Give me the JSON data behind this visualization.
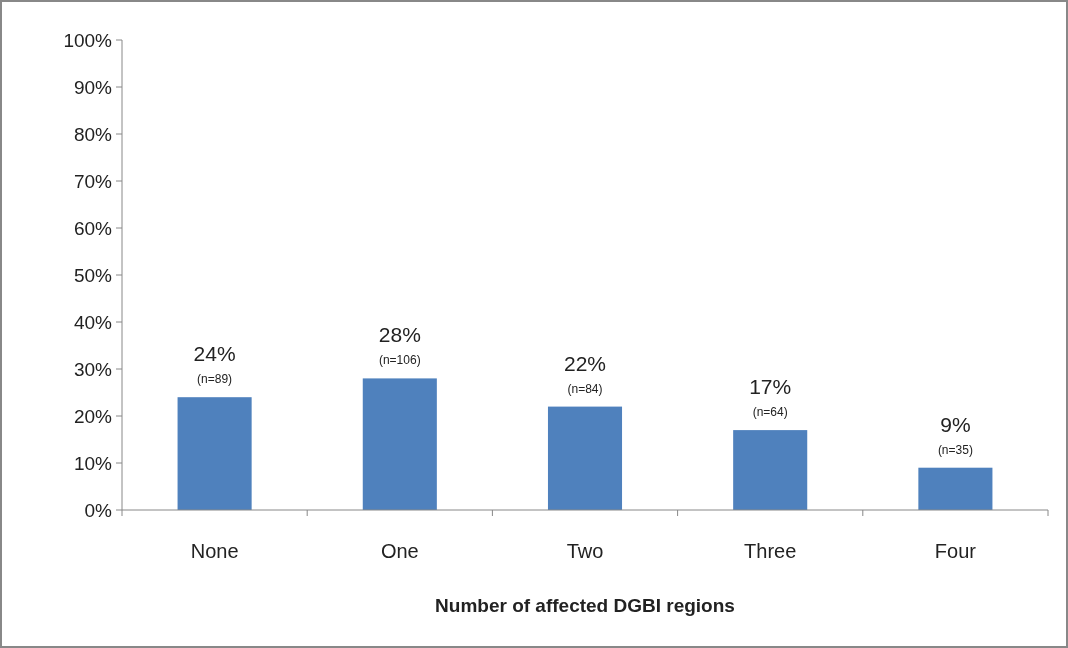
{
  "chart_data": {
    "type": "bar",
    "xlabel": "Number of affected DGBI regions",
    "categories": [
      "None",
      "One",
      "Two",
      "Three",
      "Four"
    ],
    "values": [
      24,
      28,
      22,
      17,
      9
    ],
    "color": "#4f81bd",
    "value_labels": [
      "24%",
      "28%",
      "22%",
      "17%",
      "9%"
    ],
    "annotations": [
      {
        "text": "(n=89)",
        "x": "None",
        "y": 24
      },
      {
        "text": "(n=106)",
        "x": "One",
        "y": 28
      },
      {
        "text": "(n=84)",
        "x": "Two",
        "y": 22
      },
      {
        "text": "(n=64)",
        "x": "Three",
        "y": 17
      },
      {
        "text": "(n=35)",
        "x": "Four",
        "y": 9
      }
    ],
    "ylim": [
      0,
      100
    ],
    "yticks": [
      {
        "value": 0,
        "label": "0%"
      },
      {
        "value": 10,
        "label": "10%"
      },
      {
        "value": 20,
        "label": "20%"
      },
      {
        "value": 30,
        "label": "30%"
      },
      {
        "value": 40,
        "label": "40%"
      },
      {
        "value": 50,
        "label": "50%"
      },
      {
        "value": 60,
        "label": "60%"
      },
      {
        "value": 70,
        "label": "70%"
      },
      {
        "value": 80,
        "label": "80%"
      },
      {
        "value": 90,
        "label": "90%"
      },
      {
        "value": 100,
        "label": "100%"
      }
    ],
    "tick_labels": true
  }
}
